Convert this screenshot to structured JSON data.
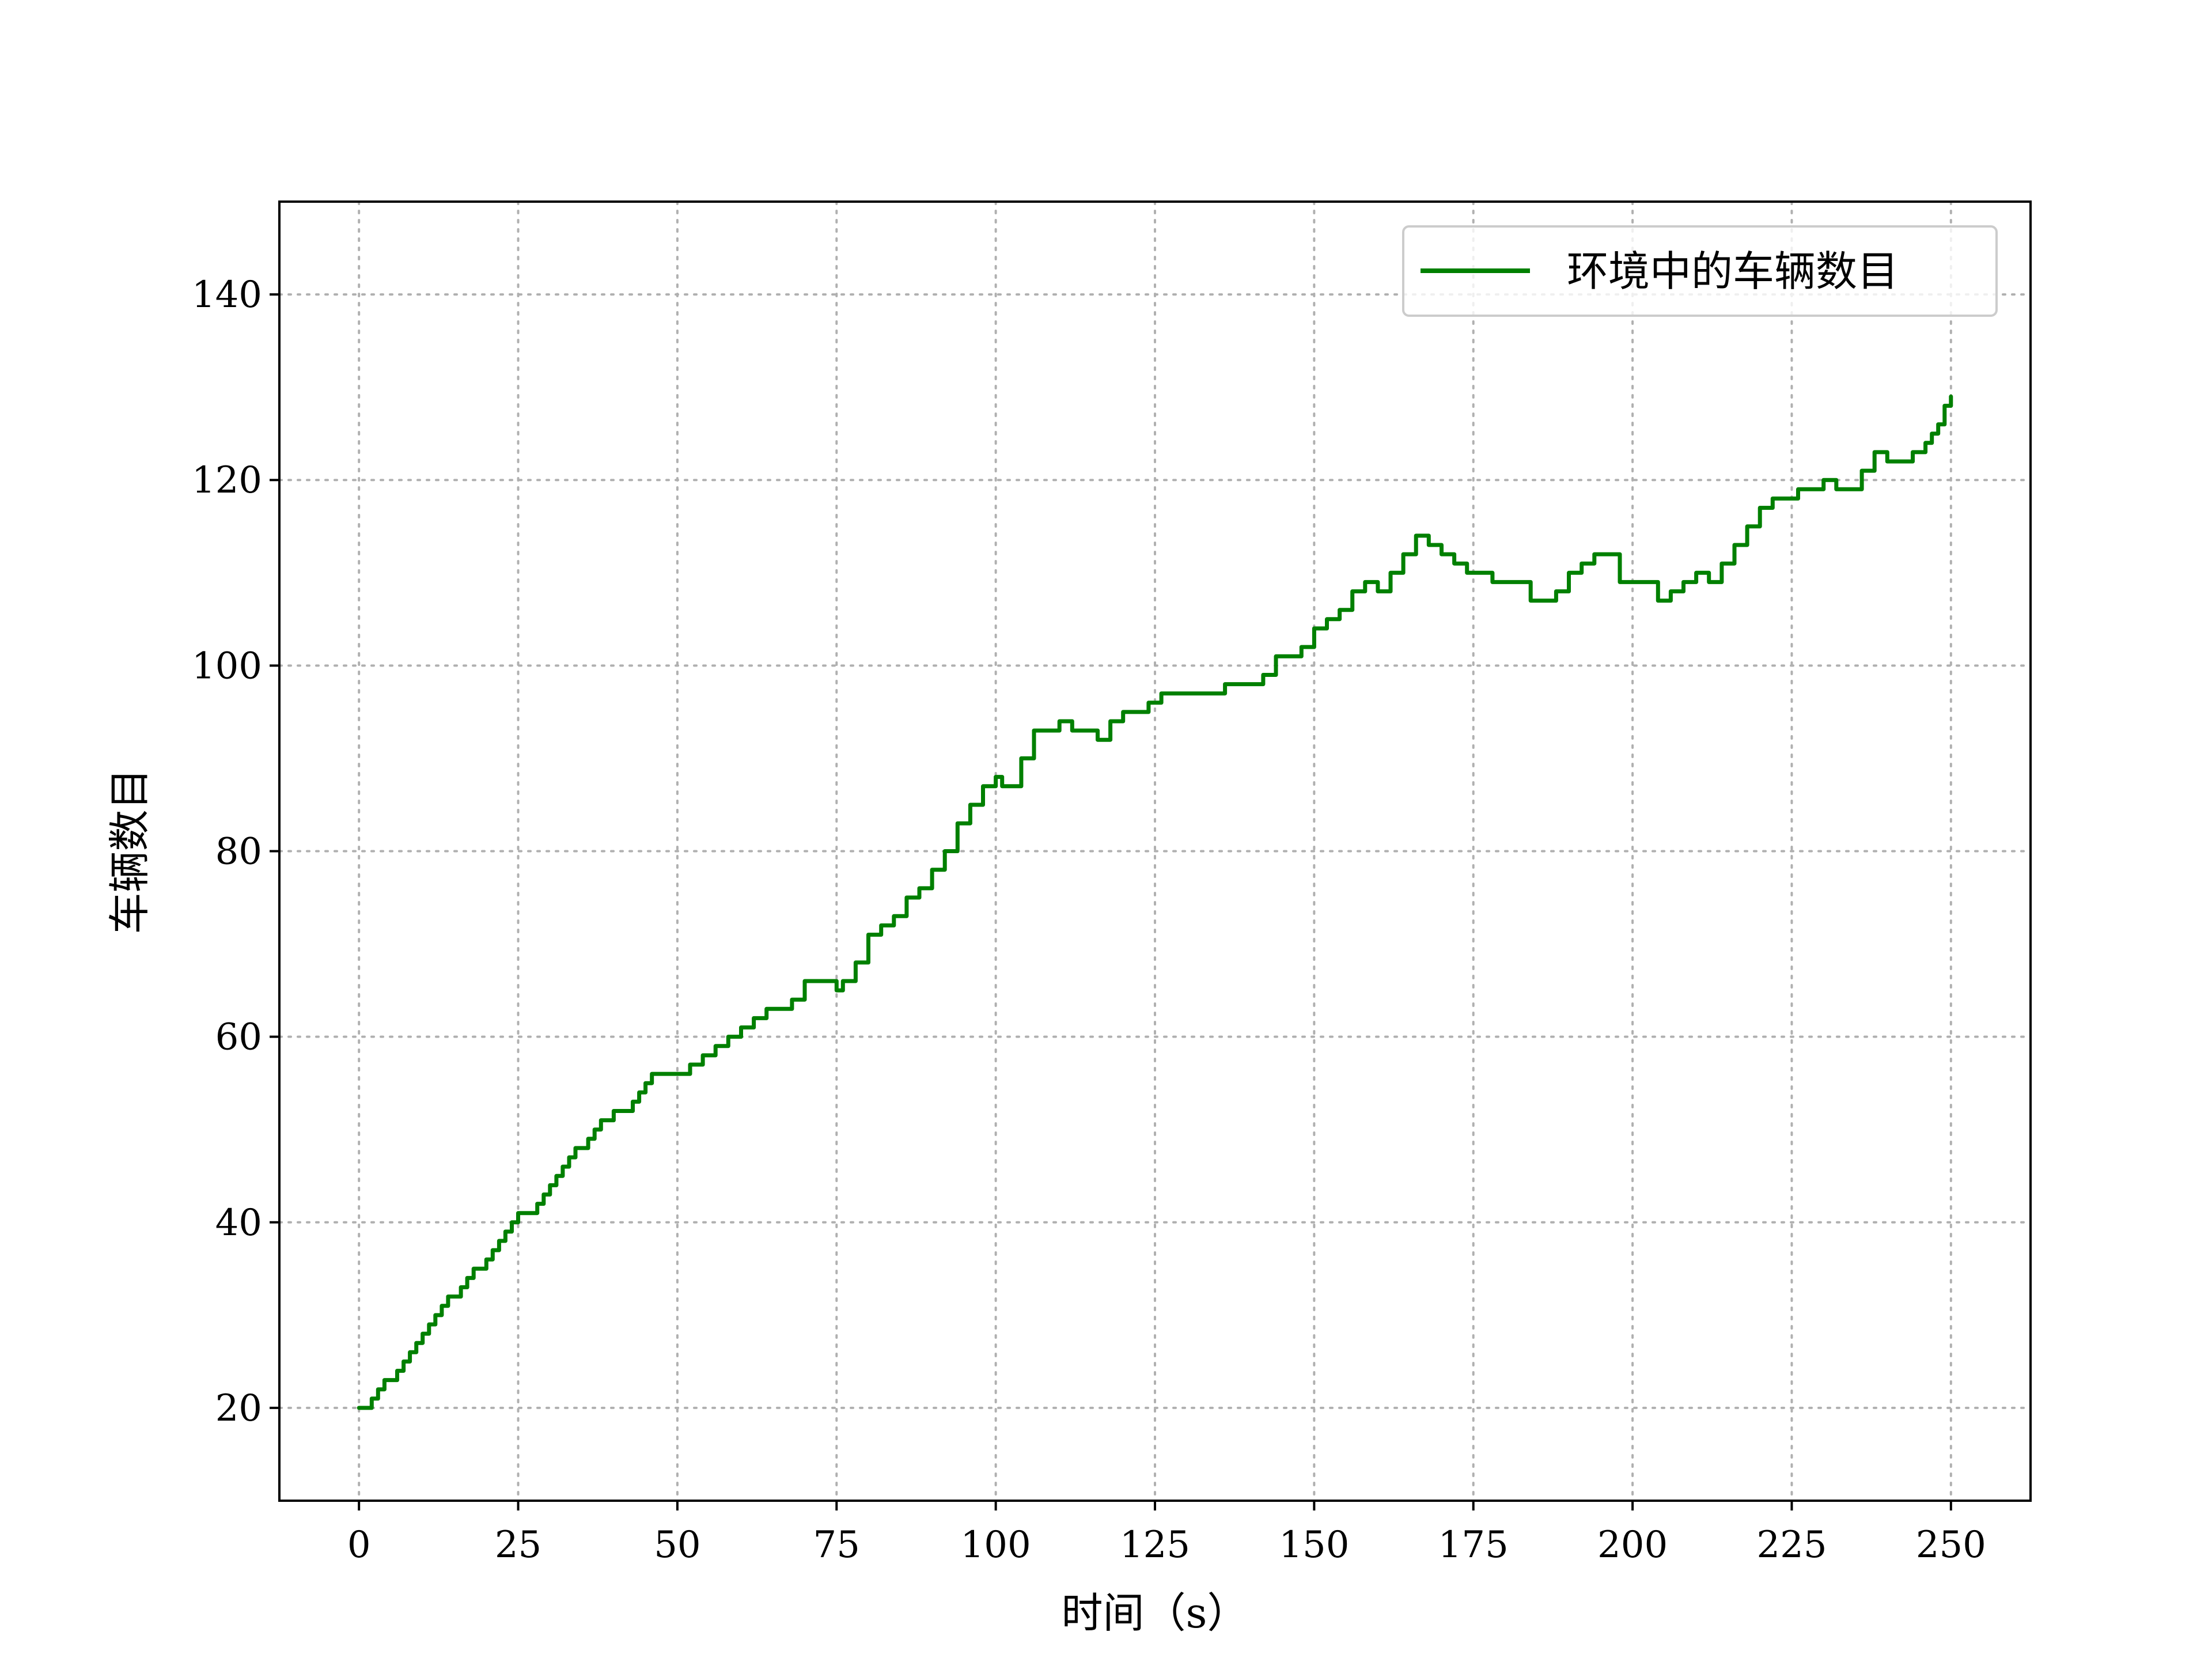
{
  "chart_data": {
    "type": "line",
    "title": "",
    "xlabel": "时间（s）",
    "ylabel": "车辆数目",
    "xlim": [
      -12.5,
      262.5
    ],
    "ylim": [
      10,
      150
    ],
    "xticks": [
      0,
      25,
      50,
      75,
      100,
      125,
      150,
      175,
      200,
      225,
      250
    ],
    "xtick_labels": [
      "0",
      "25",
      "50",
      "75",
      "100",
      "125",
      "150",
      "175",
      "200",
      "225",
      "250"
    ],
    "yticks": [
      20,
      40,
      60,
      80,
      100,
      120,
      140
    ],
    "ytick_labels": [
      "20",
      "40",
      "60",
      "80",
      "100",
      "120",
      "140"
    ],
    "grid": true,
    "grid_style": "dotted",
    "legend_position": "upper right",
    "colors": {
      "series": "#008000",
      "axes": "#000000",
      "grid": "#b0b0b0"
    },
    "series": [
      {
        "name": "环境中的车辆数目",
        "x": [
          0,
          1,
          2,
          3,
          4,
          5,
          6,
          7,
          8,
          9,
          10,
          11,
          12,
          13,
          14,
          15,
          16,
          17,
          18,
          19,
          20,
          21,
          22,
          23,
          24,
          25,
          26,
          27,
          28,
          29,
          30,
          31,
          32,
          33,
          34,
          35,
          36,
          37,
          38,
          39,
          40,
          41,
          42,
          43,
          44,
          45,
          46,
          47,
          48,
          49,
          50,
          52,
          54,
          56,
          58,
          60,
          62,
          64,
          66,
          68,
          70,
          72,
          74,
          75,
          76,
          78,
          80,
          82,
          84,
          86,
          88,
          90,
          92,
          94,
          96,
          98,
          100,
          101,
          102,
          104,
          106,
          108,
          109,
          110,
          112,
          114,
          116,
          118,
          120,
          122,
          124,
          126,
          128,
          130,
          132,
          134,
          136,
          138,
          140,
          142,
          144,
          146,
          148,
          150,
          152,
          154,
          156,
          158,
          160,
          162,
          164,
          166,
          168,
          170,
          172,
          174,
          176,
          178,
          180,
          182,
          184,
          186,
          188,
          190,
          192,
          194,
          196,
          198,
          200,
          202,
          204,
          206,
          208,
          210,
          212,
          214,
          216,
          218,
          220,
          222,
          224,
          226,
          228,
          230,
          232,
          234,
          236,
          238,
          240,
          242,
          244,
          246,
          247,
          248,
          249,
          250
        ],
        "values": [
          20,
          20,
          21,
          22,
          23,
          23,
          24,
          25,
          26,
          27,
          28,
          29,
          30,
          31,
          32,
          32,
          33,
          34,
          35,
          35,
          36,
          37,
          38,
          39,
          40,
          41,
          41,
          41,
          42,
          43,
          44,
          45,
          46,
          47,
          48,
          48,
          49,
          50,
          51,
          51,
          52,
          52,
          52,
          53,
          54,
          55,
          56,
          56,
          56,
          56,
          56,
          57,
          58,
          59,
          60,
          61,
          62,
          63,
          63,
          64,
          66,
          66,
          66,
          65,
          66,
          68,
          71,
          72,
          73,
          75,
          76,
          78,
          80,
          83,
          85,
          87,
          88,
          87,
          87,
          90,
          93,
          93,
          93,
          94,
          93,
          93,
          92,
          94,
          95,
          95,
          96,
          97,
          97,
          97,
          97,
          97,
          98,
          98,
          98,
          99,
          101,
          101,
          102,
          104,
          105,
          106,
          108,
          109,
          108,
          110,
          112,
          114,
          113,
          112,
          111,
          110,
          110,
          109,
          109,
          109,
          107,
          107,
          108,
          110,
          111,
          112,
          112,
          109,
          109,
          109,
          107,
          108,
          109,
          110,
          109,
          111,
          113,
          115,
          117,
          118,
          118,
          119,
          119,
          120,
          119,
          119,
          121,
          123,
          122,
          122,
          123,
          124,
          125,
          126,
          128,
          129
        ]
      }
    ]
  }
}
